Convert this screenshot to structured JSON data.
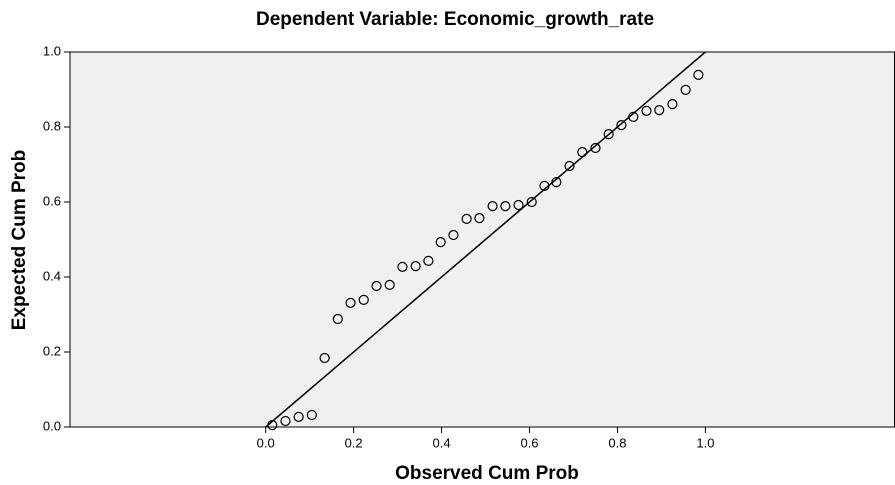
{
  "chart_data": {
    "type": "scatter",
    "title": "Dependent Variable: Economic_growth_rate",
    "x_label": "Observed Cum Prob",
    "y_label": "Expected Cum Prob",
    "x": [
      0.015,
      0.045,
      0.075,
      0.105,
      0.134,
      0.164,
      0.193,
      0.223,
      0.252,
      0.282,
      0.311,
      0.341,
      0.37,
      0.398,
      0.427,
      0.457,
      0.486,
      0.516,
      0.545,
      0.575,
      0.605,
      0.634,
      0.661,
      0.691,
      0.72,
      0.75,
      0.78,
      0.809,
      0.836,
      0.866,
      0.895,
      0.925,
      0.955,
      0.984
    ],
    "values": [
      0.005,
      0.016,
      0.027,
      0.032,
      0.184,
      0.288,
      0.331,
      0.339,
      0.376,
      0.379,
      0.427,
      0.429,
      0.443,
      0.493,
      0.512,
      0.555,
      0.557,
      0.589,
      0.589,
      0.592,
      0.6,
      0.643,
      0.653,
      0.696,
      0.733,
      0.744,
      0.781,
      0.805,
      0.827,
      0.843,
      0.845,
      0.861,
      0.899,
      0.939
    ],
    "xlim": [
      -0.445,
      1.43
    ],
    "ylim": [
      0,
      1
    ],
    "xticks": [
      {
        "value": 0,
        "label": "0.0"
      },
      {
        "value": 0.2,
        "label": "0.2"
      },
      {
        "value": 0.4,
        "label": "0.4"
      },
      {
        "value": 0.6,
        "label": "0.6"
      },
      {
        "value": 0.8,
        "label": "0.8"
      },
      {
        "value": 1,
        "label": "1.0"
      }
    ],
    "yticks": [
      {
        "value": 0,
        "label": "0.0"
      },
      {
        "value": 0.2,
        "label": "0.2"
      },
      {
        "value": 0.4,
        "label": "0.4"
      },
      {
        "value": 0.6,
        "label": "0.6"
      },
      {
        "value": 0.8,
        "label": "0.8"
      },
      {
        "value": 1,
        "label": "1.0"
      }
    ],
    "reference_line": true,
    "background": "#f0f0f0",
    "marker_color": "#000000"
  }
}
